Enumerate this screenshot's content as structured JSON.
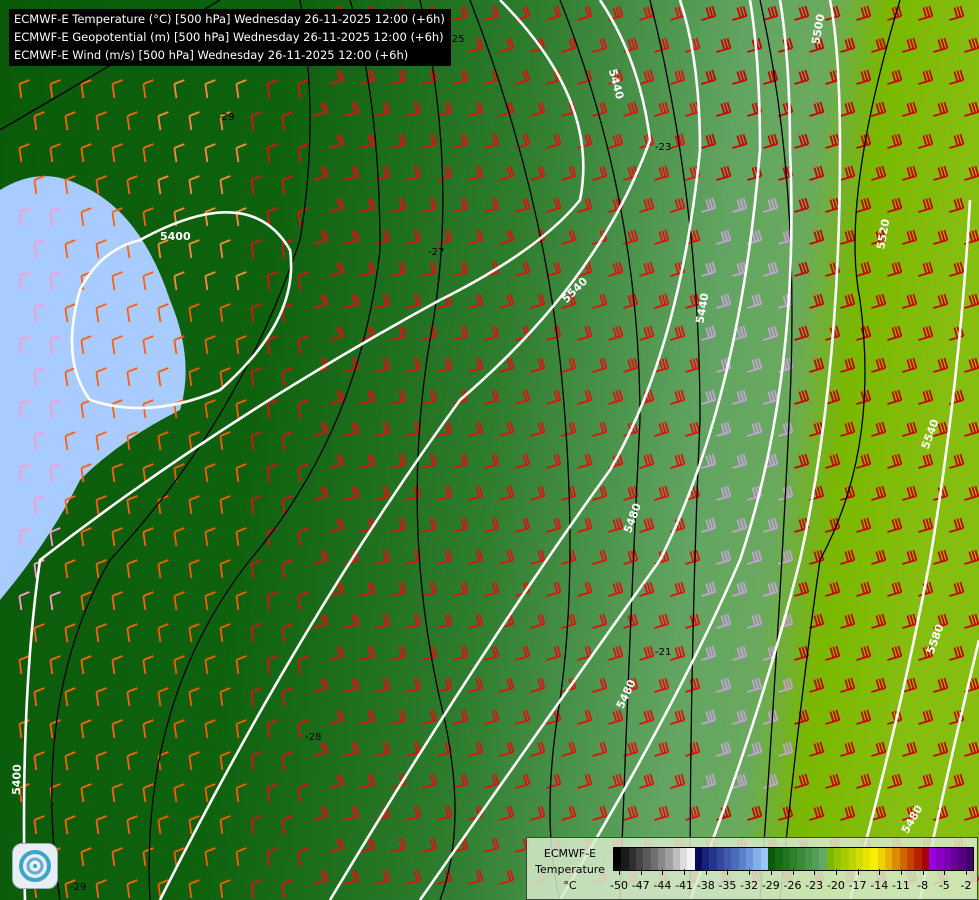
{
  "title_lines": [
    "ECMWF-E Temperature (°C) [500 hPa] Wednesday 26-11-2025 12:00 (+6h)",
    "ECMWF-E Geopotential (m) [500 hPa] Wednesday 26-11-2025 12:00 (+6h)",
    "ECMWF-E Wind (m/s) [500 hPa] Wednesday 26-11-2025 12:00 (+6h)"
  ],
  "geopotential_labels": [
    "5400",
    "5440",
    "5540",
    "5500",
    "5520",
    "5480",
    "5540",
    "5580",
    "5400",
    "5440",
    "5480",
    "5480"
  ],
  "temperature_labels": [
    "-29",
    "-27",
    "-25",
    "-23",
    "-28",
    "-29",
    "-21"
  ],
  "legend": {
    "line1": "ECMWF-E",
    "line2": "Temperature",
    "unit": "°C",
    "ticks": [
      "-50",
      "-47",
      "-44",
      "-41",
      "-38",
      "-35",
      "-32",
      "-29",
      "-26",
      "-23",
      "-20",
      "-17",
      "-14",
      "-11",
      "-8",
      "-5",
      "-2"
    ],
    "colors": [
      "#000000",
      "#1a1a1a",
      "#2e2e2e",
      "#444444",
      "#5a5a5a",
      "#707070",
      "#888888",
      "#a0a0a0",
      "#bdbdbd",
      "#dcdcdc",
      "#f4f4f4",
      "#0a0a5a",
      "#1a2278",
      "#26358a",
      "#32489a",
      "#3f5aa8",
      "#4c6cb8",
      "#5c80c8",
      "#6e96d8",
      "#84aee8",
      "#9cc6f4",
      "#0a5a0a",
      "#156a15",
      "#227622",
      "#2e802e",
      "#3a8a3a",
      "#489448",
      "#569e56",
      "#64a864",
      "#7ab800",
      "#92c400",
      "#a8cc00",
      "#bed400",
      "#d2dc00",
      "#e6e600",
      "#f4f000",
      "#f0d000",
      "#e8b000",
      "#dc8c00",
      "#d06800",
      "#c44400",
      "#b82000",
      "#a60010",
      "#9a00e0",
      "#8a00c8",
      "#7800b0",
      "#660098",
      "#540080",
      "#400068"
    ]
  },
  "colors": {
    "contour_geopotential": "#ffffff",
    "contour_temperature": "#000000",
    "borders": "#f0c890",
    "rivers": "#4a6ad0",
    "cold_core": "#a8ccff"
  }
}
